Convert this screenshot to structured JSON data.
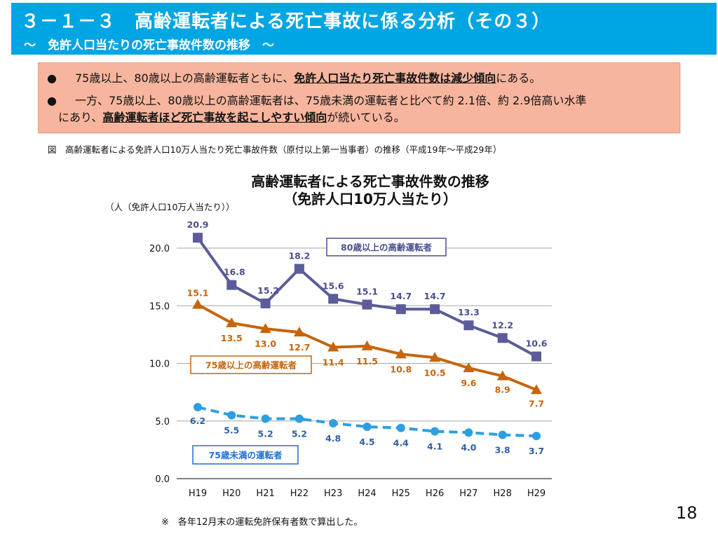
{
  "header": {
    "title": "３－１－３　高齢運転者による死亡事故に係る分析（その３）",
    "subtitle": "～　免許人口当たりの死亡事故件数の推移　～",
    "color": "#00a5e3"
  },
  "summary": {
    "bullet_icon": "●",
    "items": [
      {
        "pre": "75歳以上、80歳以上の高齢運転者ともに、",
        "emph": "免許人口当たり死亡事故件数は減少傾向",
        "post": "にある。"
      },
      {
        "pre": "一方、75歳以上、80歳以上の高齢運転者は、75歳未満の運転者と比べて約 2.1倍、約 2.9倍高い水準",
        "line2_pre": "にあり、",
        "emph": "高齢運転者ほど死亡事故を起こしやすい傾向",
        "post": "が続いている。"
      }
    ]
  },
  "figure_caption": "図　高齢運転者による免許人口10万人当たり死亡事故件数（原付以上第一当事者）の推移（平成19年～平成29年）",
  "footnote": "※　各年12月末の運転免許保有者数で算出した。",
  "page_number": "18",
  "chart_data": {
    "type": "line",
    "title": [
      "高齢運転者による死亡事故件数の推移",
      "（免許人口10万人当たり）"
    ],
    "ylabel": "（人（免許人口10万人当たり））",
    "xlabel": "",
    "categories": [
      "H19",
      "H20",
      "H21",
      "H22",
      "H23",
      "H24",
      "H25",
      "H26",
      "H27",
      "H28",
      "H29"
    ],
    "ylim": [
      0,
      20
    ],
    "yticks": [
      "0.0",
      "5.0",
      "10.0",
      "15.0",
      "20.0"
    ],
    "grid": true,
    "series": [
      {
        "name": "80歳以上の高齢運転者",
        "marker": "square",
        "style": "solid",
        "color": "#5b5c99",
        "label_color": "#4a4e8f",
        "values": [
          20.9,
          16.8,
          15.2,
          18.2,
          15.6,
          15.1,
          14.7,
          14.7,
          13.3,
          12.2,
          10.6
        ]
      },
      {
        "name": "75歳以上の高齢運転者",
        "marker": "triangle",
        "style": "solid",
        "color": "#c5650d",
        "label_color": "#c5650d",
        "values": [
          15.1,
          13.5,
          13.0,
          12.7,
          11.4,
          11.5,
          10.8,
          10.5,
          9.6,
          8.9,
          7.7
        ]
      },
      {
        "name": "75歳未満の運転者",
        "marker": "circle",
        "style": "dashed",
        "color": "#2d9fe0",
        "label_color": "#2e5fa0",
        "values": [
          6.2,
          5.5,
          5.2,
          5.2,
          4.8,
          4.5,
          4.4,
          4.1,
          4.0,
          3.8,
          3.7
        ]
      }
    ]
  }
}
